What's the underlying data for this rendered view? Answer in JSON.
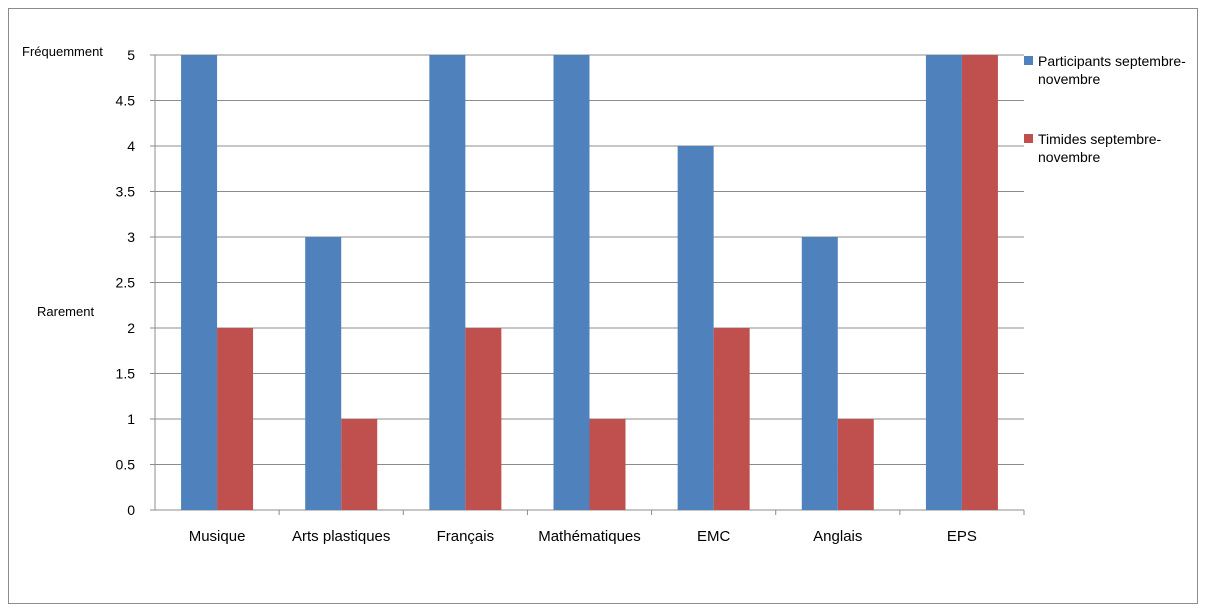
{
  "chart_data": {
    "type": "bar",
    "categories": [
      "Musique",
      "Arts plastiques",
      "Français",
      "Mathématiques",
      "EMC",
      "Anglais",
      "EPS"
    ],
    "series": [
      {
        "name": "Participants septembre-novembre",
        "values": [
          5,
          3,
          5,
          5,
          4,
          3,
          5
        ],
        "color": "#4f81bd"
      },
      {
        "name": "Timides septembre-novembre",
        "values": [
          2,
          1,
          2,
          1,
          2,
          1,
          5
        ],
        "color": "#c0504d"
      }
    ],
    "title": "",
    "xlabel": "",
    "ylabel": "",
    "ylim": [
      0,
      5
    ],
    "yticks": [
      0,
      0.5,
      1,
      1.5,
      2,
      2.5,
      3,
      3.5,
      4,
      4.5,
      5
    ],
    "ytick_labels": [
      "0",
      "0.5",
      "1",
      "1.5",
      "2",
      "2.5",
      "3",
      "3.5",
      "4",
      "4.5",
      "5"
    ],
    "y_top_annotation": "Fréquemment",
    "y_bottom_annotation": "Rarement",
    "grid": true,
    "legend_position": "right"
  }
}
